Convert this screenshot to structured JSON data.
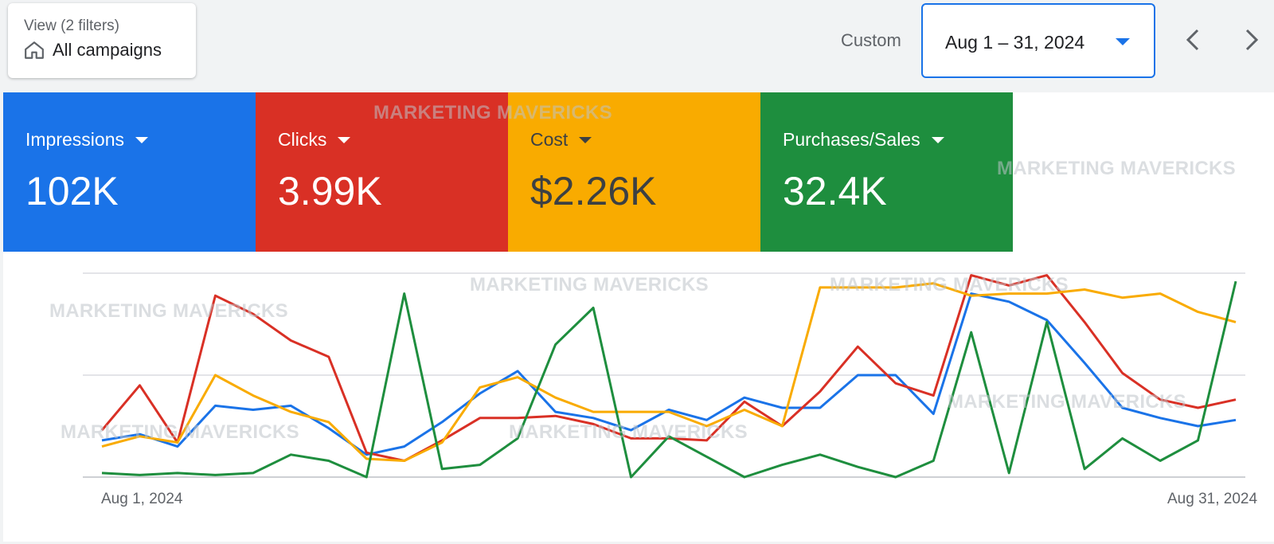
{
  "view": {
    "subtitle": "View (2 filters)",
    "title": "All campaigns",
    "icon": "home-icon"
  },
  "date_range": {
    "label": "Custom",
    "value": "Aug 1 – 31, 2024"
  },
  "metrics": [
    {
      "label": "Impressions",
      "value": "102K",
      "color": "#1a73e8"
    },
    {
      "label": "Clicks",
      "value": "3.99K",
      "color": "#d93025"
    },
    {
      "label": "Cost",
      "value": "$2.26K",
      "color": "#f9ab00"
    },
    {
      "label": "Purchases/Sales",
      "value": "32.4K",
      "color": "#1e8e3e"
    }
  ],
  "watermark": "MARKETING MAVERICKS",
  "chart_data": {
    "type": "line",
    "x": [
      "Aug 1",
      "Aug 2",
      "Aug 3",
      "Aug 4",
      "Aug 5",
      "Aug 6",
      "Aug 7",
      "Aug 8",
      "Aug 9",
      "Aug 10",
      "Aug 11",
      "Aug 12",
      "Aug 13",
      "Aug 14",
      "Aug 15",
      "Aug 16",
      "Aug 17",
      "Aug 18",
      "Aug 19",
      "Aug 20",
      "Aug 21",
      "Aug 22",
      "Aug 23",
      "Aug 24",
      "Aug 25",
      "Aug 26",
      "Aug 27",
      "Aug 28",
      "Aug 29",
      "Aug 30",
      "Aug 31"
    ],
    "x_tick_labels": [
      "Aug 1, 2024",
      "Aug 31, 2024"
    ],
    "ylim": [
      0,
      100
    ],
    "grid": true,
    "series": [
      {
        "color": "#1a73e8",
        "values": [
          18,
          21,
          15,
          35,
          33,
          35,
          24,
          11,
          15,
          27,
          41,
          52,
          32,
          29,
          23,
          33,
          28,
          39,
          34,
          34,
          50,
          50,
          31,
          90,
          86,
          77,
          56,
          34,
          29,
          25,
          28
        ]
      },
      {
        "color": "#d93025",
        "values": [
          23,
          45,
          17,
          89,
          80,
          67,
          59,
          12,
          8,
          18,
          29,
          29,
          30,
          26,
          19,
          19,
          18,
          37,
          25,
          42,
          64,
          46,
          40,
          99,
          94,
          99,
          76,
          51,
          38,
          34,
          38
        ]
      },
      {
        "color": "#f9ab00",
        "values": [
          15,
          20,
          17,
          50,
          40,
          32,
          27,
          9,
          8,
          17,
          44,
          49,
          39,
          32,
          32,
          32,
          25,
          33,
          25,
          93,
          93,
          93,
          95,
          89,
          90,
          90,
          92,
          88,
          90,
          81,
          76
        ]
      },
      {
        "color": "#1e8e3e",
        "values": [
          2,
          1,
          2,
          1,
          2,
          11,
          8,
          0,
          90,
          4,
          6,
          19,
          65,
          83,
          0,
          20,
          10,
          0,
          6,
          11,
          5,
          0,
          8,
          71,
          2,
          76,
          4,
          19,
          8,
          18,
          96
        ]
      }
    ]
  }
}
